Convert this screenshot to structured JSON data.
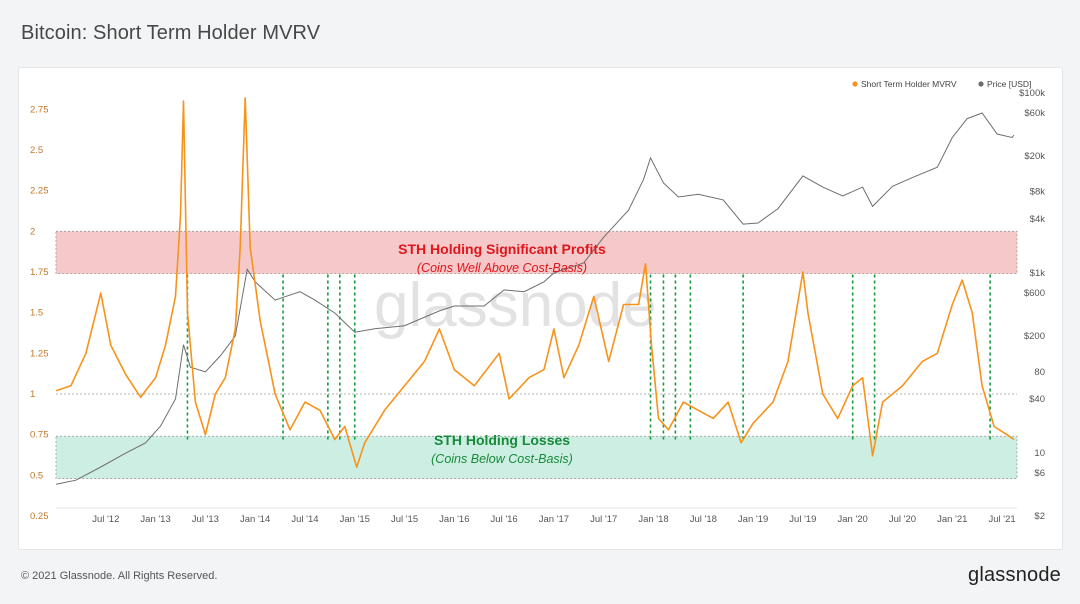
{
  "header": {
    "title": "Bitcoin: Short Term Holder MVRV"
  },
  "footer": {
    "copyright": "© 2021 Glassnode. All Rights Reserved.",
    "logo": "glassnode"
  },
  "chart_data": {
    "type": "line",
    "watermark": "glassnode",
    "legend": {
      "placement": "top-right",
      "items": [
        {
          "label": "Short Term Holder MVRV",
          "color": "#f7931a"
        },
        {
          "label": "Price [USD]",
          "color": "#6e6e6e"
        }
      ]
    },
    "x_ticks": [
      "Jul '12",
      "Jan '13",
      "Jul '13",
      "Jan '14",
      "Jul '14",
      "Jan '15",
      "Jul '15",
      "Jan '16",
      "Jul '16",
      "Jan '17",
      "Jul '17",
      "Jan '18",
      "Jul '18",
      "Jan '19",
      "Jul '19",
      "Jan '20",
      "Jul '20",
      "Jan '21",
      "Jul '21"
    ],
    "x_range": [
      2012.0,
      2021.65
    ],
    "y_left": {
      "ticks": [
        "0.25",
        "0.5",
        "0.75",
        "1",
        "1.25",
        "1.5",
        "1.75",
        "2",
        "2.25",
        "2.5",
        "2.75"
      ],
      "range": [
        0.25,
        2.85
      ]
    },
    "y_right": {
      "ticks": [
        "$2",
        "$6",
        "10",
        "$40",
        "80",
        "$200",
        "$600",
        "$1k",
        "$4k",
        "$8k",
        "$20k",
        "$60k",
        "$100k"
      ],
      "scale": "log",
      "range": [
        2,
        100000
      ]
    },
    "zones": [
      {
        "title": "STH Holding Significant Profits",
        "subtitle": "(Coins Well Above Cost-Basis)",
        "from": 1.74,
        "to": 2.0,
        "color": "#f5c9c9"
      },
      {
        "title": "STH Holding Losses",
        "subtitle": "(Coins Below Cost-Basis)",
        "from": 0.48,
        "to": 0.74,
        "color": "#cdeee2"
      }
    ],
    "reference_line": 1.0,
    "markers_x": [
      2013.32,
      2014.28,
      2014.73,
      2014.85,
      2015.0,
      2017.97,
      2018.1,
      2018.22,
      2018.37,
      2018.9,
      2020.0,
      2020.22,
      2021.38
    ],
    "series": [
      {
        "name": "Short Term Holder MVRV",
        "color": "#f7931a",
        "points": [
          [
            2012.0,
            1.02
          ],
          [
            2012.15,
            1.05
          ],
          [
            2012.3,
            1.25
          ],
          [
            2012.45,
            1.62
          ],
          [
            2012.55,
            1.3
          ],
          [
            2012.7,
            1.12
          ],
          [
            2012.85,
            0.98
          ],
          [
            2013.0,
            1.1
          ],
          [
            2013.1,
            1.3
          ],
          [
            2013.2,
            1.6
          ],
          [
            2013.25,
            2.1
          ],
          [
            2013.28,
            2.8
          ],
          [
            2013.32,
            1.5
          ],
          [
            2013.4,
            0.95
          ],
          [
            2013.5,
            0.75
          ],
          [
            2013.6,
            1.0
          ],
          [
            2013.7,
            1.1
          ],
          [
            2013.8,
            1.4
          ],
          [
            2013.85,
            1.9
          ],
          [
            2013.9,
            2.82
          ],
          [
            2013.95,
            1.9
          ],
          [
            2014.05,
            1.45
          ],
          [
            2014.2,
            1.0
          ],
          [
            2014.35,
            0.78
          ],
          [
            2014.5,
            0.95
          ],
          [
            2014.65,
            0.9
          ],
          [
            2014.8,
            0.72
          ],
          [
            2014.9,
            0.8
          ],
          [
            2015.02,
            0.55
          ],
          [
            2015.1,
            0.7
          ],
          [
            2015.3,
            0.9
          ],
          [
            2015.5,
            1.05
          ],
          [
            2015.7,
            1.2
          ],
          [
            2015.85,
            1.4
          ],
          [
            2016.0,
            1.15
          ],
          [
            2016.2,
            1.05
          ],
          [
            2016.45,
            1.25
          ],
          [
            2016.55,
            0.97
          ],
          [
            2016.75,
            1.1
          ],
          [
            2016.9,
            1.15
          ],
          [
            2017.0,
            1.4
          ],
          [
            2017.1,
            1.1
          ],
          [
            2017.25,
            1.3
          ],
          [
            2017.4,
            1.6
          ],
          [
            2017.55,
            1.2
          ],
          [
            2017.7,
            1.55
          ],
          [
            2017.85,
            1.55
          ],
          [
            2017.92,
            1.8
          ],
          [
            2017.98,
            1.3
          ],
          [
            2018.05,
            0.85
          ],
          [
            2018.15,
            0.78
          ],
          [
            2018.3,
            0.95
          ],
          [
            2018.45,
            0.9
          ],
          [
            2018.6,
            0.85
          ],
          [
            2018.75,
            0.95
          ],
          [
            2018.88,
            0.7
          ],
          [
            2019.0,
            0.82
          ],
          [
            2019.2,
            0.95
          ],
          [
            2019.35,
            1.2
          ],
          [
            2019.5,
            1.75
          ],
          [
            2019.55,
            1.5
          ],
          [
            2019.7,
            1.0
          ],
          [
            2019.85,
            0.85
          ],
          [
            2020.0,
            1.05
          ],
          [
            2020.1,
            1.1
          ],
          [
            2020.2,
            0.62
          ],
          [
            2020.3,
            0.95
          ],
          [
            2020.5,
            1.05
          ],
          [
            2020.7,
            1.2
          ],
          [
            2020.85,
            1.25
          ],
          [
            2021.0,
            1.55
          ],
          [
            2021.1,
            1.7
          ],
          [
            2021.2,
            1.5
          ],
          [
            2021.3,
            1.05
          ],
          [
            2021.42,
            0.8
          ],
          [
            2021.55,
            0.75
          ],
          [
            2021.62,
            0.72
          ]
        ]
      },
      {
        "name": "Price [USD]",
        "color": "#6e6e6e",
        "points": [
          [
            2012.0,
            4.5
          ],
          [
            2012.2,
            5
          ],
          [
            2012.45,
            7
          ],
          [
            2012.7,
            10
          ],
          [
            2012.9,
            13
          ],
          [
            2013.05,
            20
          ],
          [
            2013.2,
            40
          ],
          [
            2013.28,
            160
          ],
          [
            2013.35,
            90
          ],
          [
            2013.5,
            80
          ],
          [
            2013.65,
            120
          ],
          [
            2013.8,
            200
          ],
          [
            2013.92,
            1100
          ],
          [
            2014.0,
            800
          ],
          [
            2014.2,
            500
          ],
          [
            2014.45,
            620
          ],
          [
            2014.6,
            500
          ],
          [
            2014.8,
            360
          ],
          [
            2015.0,
            220
          ],
          [
            2015.2,
            240
          ],
          [
            2015.5,
            260
          ],
          [
            2015.85,
            380
          ],
          [
            2016.0,
            430
          ],
          [
            2016.3,
            430
          ],
          [
            2016.5,
            650
          ],
          [
            2016.7,
            620
          ],
          [
            2016.9,
            800
          ],
          [
            2017.0,
            1000
          ],
          [
            2017.3,
            1300
          ],
          [
            2017.5,
            2500
          ],
          [
            2017.75,
            5000
          ],
          [
            2017.9,
            11000
          ],
          [
            2017.97,
            19000
          ],
          [
            2018.1,
            10000
          ],
          [
            2018.25,
            7000
          ],
          [
            2018.45,
            7500
          ],
          [
            2018.7,
            6500
          ],
          [
            2018.9,
            3500
          ],
          [
            2019.05,
            3600
          ],
          [
            2019.25,
            5200
          ],
          [
            2019.5,
            12000
          ],
          [
            2019.7,
            9000
          ],
          [
            2019.9,
            7200
          ],
          [
            2020.1,
            9000
          ],
          [
            2020.2,
            5500
          ],
          [
            2020.4,
            9200
          ],
          [
            2020.6,
            11500
          ],
          [
            2020.85,
            15000
          ],
          [
            2021.0,
            32000
          ],
          [
            2021.15,
            52000
          ],
          [
            2021.3,
            60000
          ],
          [
            2021.38,
            45000
          ],
          [
            2021.45,
            35000
          ],
          [
            2021.6,
            32000
          ],
          [
            2021.62,
            34000
          ]
        ]
      }
    ]
  }
}
